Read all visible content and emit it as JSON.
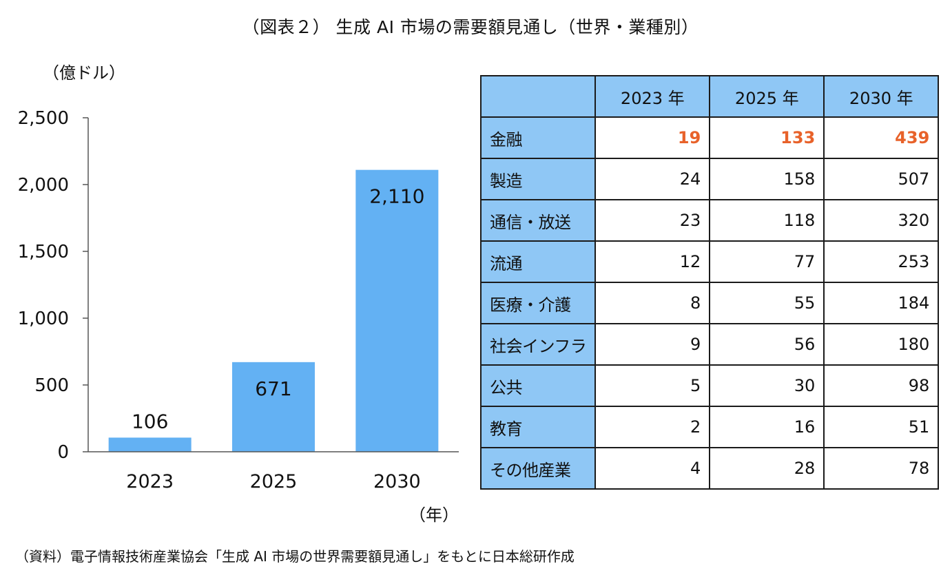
{
  "title": "（図表２） 生成 AI 市場の需要額見通し（世界・業種別）",
  "unit_label": "（億ドル）",
  "x_unit_label": "（年）",
  "source": "（資料）電子情報技術産業協会「生成 AI 市場の世界需要額見通し」をもとに日本総研作成",
  "colors": {
    "bar": "#63b1f3",
    "header_bg": "#8fc7f5",
    "highlight": "#e8622a"
  },
  "chart_data": {
    "type": "bar",
    "categories": [
      "2023",
      "2025",
      "2030"
    ],
    "values": [
      106,
      671,
      2110
    ],
    "value_labels": [
      "106",
      "671",
      "2,110"
    ],
    "yticks": [
      "0",
      "500",
      "1,000",
      "1,500",
      "2,000",
      "2,500"
    ],
    "ylim": [
      0,
      2500
    ],
    "ylabel": "（億ドル）",
    "xlabel": "（年）",
    "grid": false
  },
  "table": {
    "headers": [
      "2023 年",
      "2025 年",
      "2030 年"
    ],
    "rows": [
      {
        "label": "金融",
        "values": [
          "19",
          "133",
          "439"
        ],
        "highlight": true
      },
      {
        "label": "製造",
        "values": [
          "24",
          "158",
          "507"
        ]
      },
      {
        "label": "通信・放送",
        "values": [
          "23",
          "118",
          "320"
        ]
      },
      {
        "label": "流通",
        "values": [
          "12",
          "77",
          "253"
        ]
      },
      {
        "label": "医療・介護",
        "values": [
          "8",
          "55",
          "184"
        ]
      },
      {
        "label": "社会インフラ",
        "values": [
          "9",
          "56",
          "180"
        ]
      },
      {
        "label": "公共",
        "values": [
          "5",
          "30",
          "98"
        ]
      },
      {
        "label": "教育",
        "values": [
          "2",
          "16",
          "51"
        ]
      },
      {
        "label": "その他産業",
        "values": [
          "4",
          "28",
          "78"
        ]
      }
    ]
  }
}
